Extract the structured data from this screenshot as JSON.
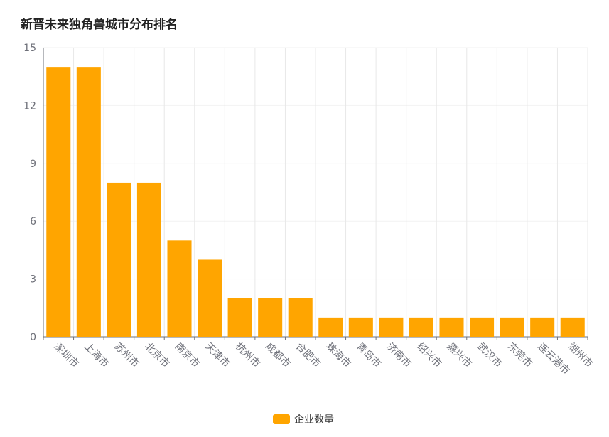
{
  "chart_data": {
    "type": "bar",
    "title": "新晋未来独角兽城市分布排名",
    "categories": [
      "深圳市",
      "上海市",
      "苏州市",
      "北京市",
      "南京市",
      "天津市",
      "杭州市",
      "成都市",
      "合肥市",
      "珠海市",
      "青岛市",
      "济南市",
      "绍兴市",
      "嘉兴市",
      "武汉市",
      "东莞市",
      "连云港市",
      "湖州市"
    ],
    "series": [
      {
        "name": "企业数量",
        "values": [
          14,
          14,
          8,
          8,
          5,
          4,
          2,
          2,
          2,
          1,
          1,
          1,
          1,
          1,
          1,
          1,
          1,
          1
        ],
        "color": "#FFA500"
      }
    ],
    "ylim": [
      0,
      15
    ],
    "yticks": [
      0,
      3,
      6,
      9,
      12,
      15
    ],
    "grid": true,
    "legend_position": "bottom-center",
    "xlabel": "",
    "ylabel": ""
  }
}
